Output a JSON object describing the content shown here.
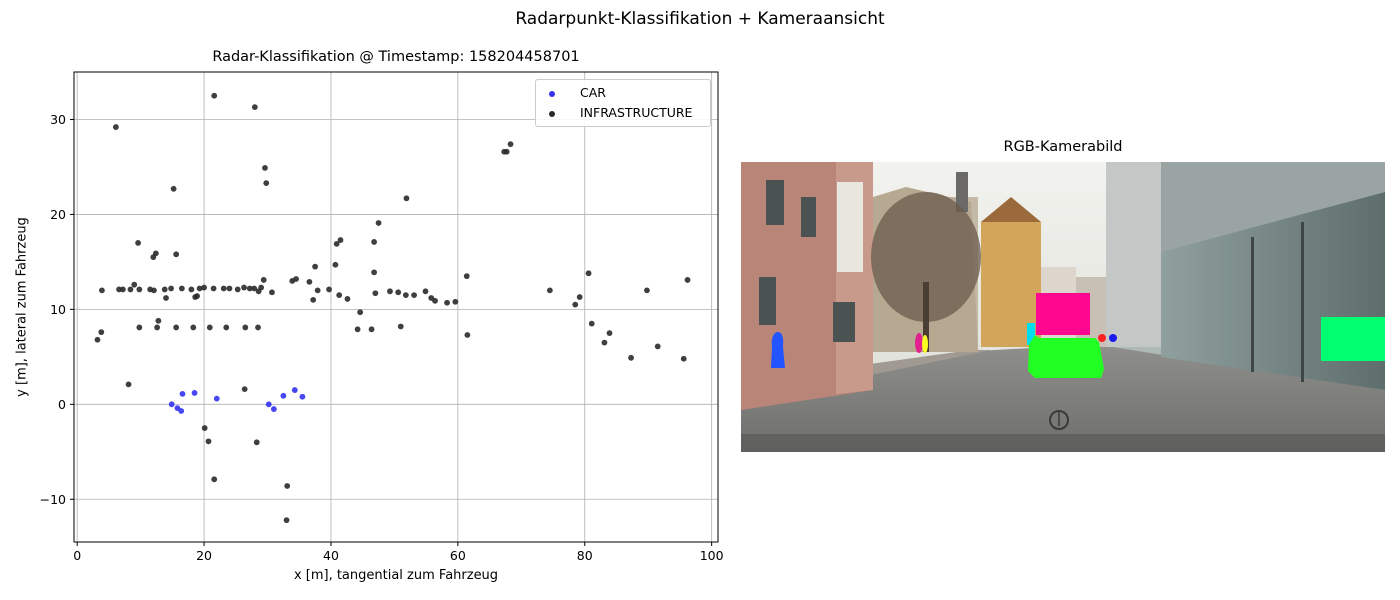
{
  "figure_title": "Radarpunkt-Klassifikation + Kameraansicht",
  "chart_data": [
    {
      "type": "scatter",
      "title": "Radar-Klassifikation @ Timestamp: 158204458701",
      "xlabel": "x [m], tangential zum Fahrzeug",
      "ylabel": "y [m], lateral zum Fahrzeug",
      "xlim": [
        -0.5,
        101
      ],
      "ylim": [
        -14.5,
        35
      ],
      "xticks": [
        0,
        20,
        40,
        60,
        80,
        100
      ],
      "yticks": [
        -10,
        0,
        10,
        20,
        30
      ],
      "grid": true,
      "legend_position": "top-right",
      "series": [
        {
          "name": "CAR",
          "color": "#3333f0",
          "points": [
            [
              14.9,
              0.0
            ],
            [
              15.8,
              -0.4
            ],
            [
              16.4,
              -0.7
            ],
            [
              16.6,
              1.1
            ],
            [
              18.5,
              1.2
            ],
            [
              22.0,
              0.6
            ],
            [
              30.2,
              0.0
            ],
            [
              31.0,
              -0.5
            ],
            [
              32.5,
              0.9
            ],
            [
              34.3,
              1.5
            ],
            [
              35.5,
              0.8
            ]
          ]
        },
        {
          "name": "INFRASTRUCTURE",
          "color": "#2a2a2a",
          "points": [
            [
              6.1,
              29.2
            ],
            [
              21.6,
              32.5
            ],
            [
              28.0,
              31.3
            ],
            [
              15.2,
              22.7
            ],
            [
              29.6,
              24.9
            ],
            [
              29.8,
              23.3
            ],
            [
              51.9,
              21.7
            ],
            [
              67.3,
              26.6
            ],
            [
              67.7,
              26.6
            ],
            [
              68.3,
              27.4
            ],
            [
              9.6,
              17.0
            ],
            [
              15.6,
              15.8
            ],
            [
              12.0,
              15.5
            ],
            [
              12.4,
              15.9
            ],
            [
              47.5,
              19.1
            ],
            [
              41.5,
              17.3
            ],
            [
              40.9,
              16.9
            ],
            [
              46.8,
              17.1
            ],
            [
              40.7,
              14.7
            ],
            [
              37.5,
              14.5
            ],
            [
              46.8,
              13.9
            ],
            [
              61.4,
              13.5
            ],
            [
              80.6,
              13.8
            ],
            [
              96.2,
              13.1
            ],
            [
              29.4,
              13.1
            ],
            [
              34.5,
              13.2
            ],
            [
              33.9,
              13.0
            ],
            [
              36.6,
              12.9
            ],
            [
              3.9,
              12.0
            ],
            [
              6.6,
              12.1
            ],
            [
              7.2,
              12.1
            ],
            [
              8.4,
              12.1
            ],
            [
              9.0,
              12.6
            ],
            [
              9.8,
              12.1
            ],
            [
              11.5,
              12.1
            ],
            [
              12.1,
              12.0
            ],
            [
              13.8,
              12.1
            ],
            [
              14.8,
              12.2
            ],
            [
              16.5,
              12.2
            ],
            [
              18.0,
              12.1
            ],
            [
              19.3,
              12.2
            ],
            [
              20.0,
              12.3
            ],
            [
              21.5,
              12.2
            ],
            [
              23.1,
              12.2
            ],
            [
              24.0,
              12.2
            ],
            [
              25.3,
              12.1
            ],
            [
              26.3,
              12.3
            ],
            [
              27.2,
              12.2
            ],
            [
              27.9,
              12.2
            ],
            [
              28.6,
              11.9
            ],
            [
              29.0,
              12.3
            ],
            [
              30.7,
              11.8
            ],
            [
              14.0,
              11.2
            ],
            [
              18.6,
              11.3
            ],
            [
              18.9,
              11.4
            ],
            [
              37.9,
              12.0
            ],
            [
              39.7,
              12.1
            ],
            [
              41.3,
              11.5
            ],
            [
              42.6,
              11.1
            ],
            [
              47.0,
              11.7
            ],
            [
              49.3,
              11.9
            ],
            [
              50.6,
              11.8
            ],
            [
              51.8,
              11.5
            ],
            [
              53.1,
              11.5
            ],
            [
              54.9,
              11.9
            ],
            [
              55.8,
              11.2
            ],
            [
              56.4,
              10.9
            ],
            [
              58.3,
              10.7
            ],
            [
              59.6,
              10.8
            ],
            [
              74.5,
              12.0
            ],
            [
              78.5,
              10.5
            ],
            [
              79.2,
              11.3
            ],
            [
              89.8,
              12.0
            ],
            [
              37.2,
              11.0
            ],
            [
              3.2,
              6.8
            ],
            [
              3.8,
              7.6
            ],
            [
              9.8,
              8.1
            ],
            [
              12.8,
              8.8
            ],
            [
              12.6,
              8.1
            ],
            [
              15.6,
              8.1
            ],
            [
              18.3,
              8.1
            ],
            [
              20.9,
              8.1
            ],
            [
              23.5,
              8.1
            ],
            [
              26.5,
              8.1
            ],
            [
              28.5,
              8.1
            ],
            [
              44.6,
              9.7
            ],
            [
              44.2,
              7.9
            ],
            [
              46.4,
              7.9
            ],
            [
              51.0,
              8.2
            ],
            [
              61.5,
              7.3
            ],
            [
              81.1,
              8.5
            ],
            [
              83.9,
              7.5
            ],
            [
              83.1,
              6.5
            ],
            [
              87.3,
              4.9
            ],
            [
              91.5,
              6.1
            ],
            [
              95.6,
              4.8
            ],
            [
              8.1,
              2.1
            ],
            [
              26.4,
              1.6
            ],
            [
              20.1,
              -2.5
            ],
            [
              20.7,
              -3.9
            ],
            [
              28.3,
              -4.0
            ],
            [
              21.6,
              -7.9
            ],
            [
              33.1,
              -8.6
            ],
            [
              33.0,
              -12.2
            ]
          ]
        }
      ]
    },
    {
      "type": "image",
      "title": "RGB-Kamerabild"
    }
  ]
}
